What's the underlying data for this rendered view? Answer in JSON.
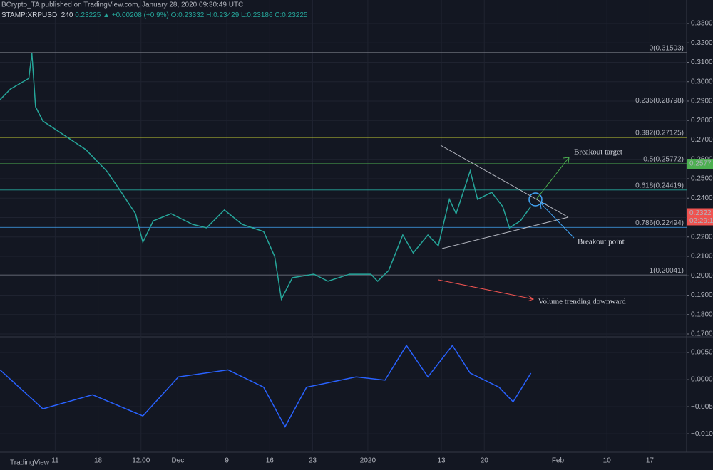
{
  "header": {
    "author_line": "BCrypto_TA published on TradingView.com, January 28, 2020 09:30:49 UTC",
    "symbol": "STAMP:XRPUSD, 240",
    "quote": "0.23225 ▲ +0.00208 (+0.9%) O:0.23332 H:0.23429 L:0.23186 C:0.23225"
  },
  "logo": "TradingView",
  "chart_data": [
    {
      "type": "line",
      "xlim": [
        0,
        112
      ],
      "xticks": [
        {
          "value": 9,
          "label": "11"
        },
        {
          "value": 16,
          "label": "18"
        },
        {
          "value": 23,
          "label": "12:00"
        },
        {
          "value": 29,
          "label": "Dec"
        },
        {
          "value": 37,
          "label": "9"
        },
        {
          "value": 44,
          "label": "16"
        },
        {
          "value": 51,
          "label": "23"
        },
        {
          "value": 60,
          "label": "2020"
        },
        {
          "value": 72,
          "label": "13"
        },
        {
          "value": 79,
          "label": "20"
        },
        {
          "value": 91,
          "label": "Feb"
        },
        {
          "value": 99,
          "label": "10"
        },
        {
          "value": 106,
          "label": "17"
        }
      ],
      "ylim": [
        0.1689,
        0.3421
      ],
      "yticks": [
        {
          "value": 0.17,
          "label": "0.1700"
        },
        {
          "value": 0.18,
          "label": "0.1800"
        },
        {
          "value": 0.19,
          "label": "0.1900"
        },
        {
          "value": 0.2,
          "label": "0.2000"
        },
        {
          "value": 0.21,
          "label": "0.2100"
        },
        {
          "value": 0.22,
          "label": "0.2200"
        },
        {
          "value": 0.23,
          "label": "0.2300"
        },
        {
          "value": 0.24,
          "label": "0.2400"
        },
        {
          "value": 0.25,
          "label": "0.2500"
        },
        {
          "value": 0.26,
          "label": "0.2600"
        },
        {
          "value": 0.27,
          "label": "0.2700"
        },
        {
          "value": 0.28,
          "label": "0.2800"
        },
        {
          "value": 0.29,
          "label": "0.2900"
        },
        {
          "value": 0.3,
          "label": "0.3000"
        },
        {
          "value": 0.31,
          "label": "0.3100"
        },
        {
          "value": 0.32,
          "label": "0.3200"
        },
        {
          "value": 0.33,
          "label": "0.3300"
        }
      ],
      "grid": true,
      "series": [
        {
          "color": "#26a69a",
          "x": [
            0,
            1.7,
            4.7,
            5.2,
            5.8,
            7,
            10.5,
            14,
            17.4,
            19.8,
            22.1,
            23.3,
            25,
            27.9,
            31.4,
            33.7,
            36.6,
            39.5,
            43,
            44.8,
            45.9,
            47.7,
            51.2,
            53.5,
            57,
            60.5,
            61.6,
            63.4,
            65.7,
            67.4,
            69.8,
            71.5,
            73.3,
            74.4,
            76.7,
            77.9,
            80.2,
            82,
            83.1,
            84.9,
            86.6
          ],
          "values": [
            0.2907,
            0.2962,
            0.3017,
            0.3146,
            0.2871,
            0.2797,
            0.2724,
            0.265,
            0.254,
            0.243,
            0.232,
            0.2173,
            0.2283,
            0.232,
            0.2265,
            0.2247,
            0.2339,
            0.2265,
            0.2228,
            0.21,
            0.188,
            0.199,
            0.2008,
            0.1972,
            0.2008,
            0.2008,
            0.1972,
            0.2027,
            0.221,
            0.2118,
            0.221,
            0.2155,
            0.2394,
            0.232,
            0.254,
            0.2394,
            0.243,
            0.2357,
            0.2247,
            0.2283,
            0.2357
          ]
        }
      ],
      "fib_levels": [
        {
          "value": 0.31503,
          "label": "0(0.31503)",
          "color": "#787b86"
        },
        {
          "value": 0.28798,
          "label": "0.236(0.28798)",
          "color": "#f23645"
        },
        {
          "value": 0.27125,
          "label": "0.382(0.27125)",
          "color": "#c0ca33"
        },
        {
          "value": 0.25772,
          "label": "0.5(0.25772)",
          "color": "#4caf50"
        },
        {
          "value": 0.24419,
          "label": "0.618(0.24419)",
          "color": "#26a69a"
        },
        {
          "value": 0.22494,
          "label": "0.786(0.22494)",
          "color": "#42a5f5"
        },
        {
          "value": 0.20041,
          "label": "1(0.20041)",
          "color": "#787b86"
        }
      ],
      "target_price": {
        "value": 0.2577,
        "label": "0.2577",
        "color": "#4caf50"
      },
      "last_price": {
        "value": 0.2322,
        "label": "0.2322",
        "countdown": "02:29:1",
        "color": "#ef5350"
      },
      "annotations": [
        "Breakout target",
        "Breakout point",
        "Volume trending downward"
      ]
    },
    {
      "type": "line",
      "xlim": [
        0,
        112
      ],
      "ylim": [
        -0.0134,
        0.0079
      ],
      "yticks": [
        {
          "value": 0.005,
          "label": "0.0050"
        },
        {
          "value": 0,
          "label": "0.0000"
        },
        {
          "value": -0.005,
          "label": "−0.0050"
        },
        {
          "value": -0.01,
          "label": "−0.0100"
        }
      ],
      "grid": true,
      "series": [
        {
          "color": "#2962ff",
          "x": [
            0,
            7,
            15.1,
            23.3,
            29.1,
            37.2,
            43,
            46.5,
            50,
            58.1,
            62.8,
            66.3,
            69.8,
            73.8,
            76.7,
            81.4,
            83.7,
            86.6
          ],
          "values": [
            0.0018,
            -0.0054,
            -0.0028,
            -0.0067,
            0.0005,
            0.0018,
            -0.0014,
            -0.0087,
            -0.0014,
            0.0005,
            -0.0001,
            0.0063,
            0.0005,
            0.0063,
            0.0012,
            -0.0014,
            -0.0041,
            0.0012
          ]
        }
      ]
    }
  ]
}
